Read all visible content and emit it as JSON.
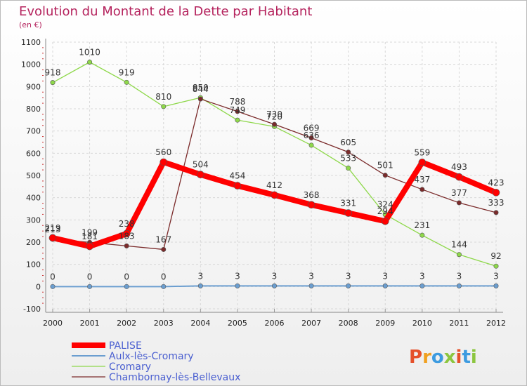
{
  "chart_data": {
    "type": "line",
    "title": "Evolution du Montant de la Dette par Habitant",
    "subtitle": "(en €)",
    "xlabel": "",
    "ylabel": "",
    "ylim": [
      -100,
      1100
    ],
    "yticks": [
      -100,
      0,
      100,
      200,
      300,
      400,
      500,
      600,
      700,
      800,
      900,
      1000,
      1100
    ],
    "x": [
      "2000",
      "2001",
      "2002",
      "2003",
      "2004",
      "2005",
      "2006",
      "2007",
      "2008",
      "2009",
      "2010",
      "2011",
      "2012"
    ],
    "grid": true,
    "legend_position": "bottom-left",
    "series": [
      {
        "name": "PALISE",
        "color": "#ff0000",
        "values": [
          219,
          181,
          238,
          560,
          504,
          454,
          412,
          368,
          331,
          294,
          559,
          493,
          423
        ],
        "labels": [
          "219",
          "181",
          "238",
          "560",
          "504",
          "454",
          "412",
          "368",
          "331",
          "294",
          "559",
          "493",
          "423"
        ]
      },
      {
        "name": "Aulx-lès-Cromary",
        "color": "#6b9ed0",
        "values": [
          0,
          0,
          0,
          0,
          3,
          3,
          3,
          3,
          3,
          3,
          3,
          3,
          3
        ],
        "labels": [
          "0",
          "0",
          "0",
          "0",
          "3",
          "3",
          "3",
          "3",
          "3",
          "3",
          "3",
          "3",
          "3"
        ]
      },
      {
        "name": "Cromary",
        "color": "#8ed84a",
        "values": [
          918,
          1010,
          919,
          810,
          850,
          749,
          720,
          636,
          533,
          324,
          231,
          144,
          92
        ],
        "labels": [
          "918",
          "1010",
          "919",
          "810",
          "850",
          "749",
          "720",
          "636",
          "533",
          "324",
          "231",
          "144",
          "92"
        ]
      },
      {
        "name": "Chambornay-lès-Bellevaux",
        "color": "#7b2b2b",
        "values": [
          213,
          199,
          183,
          167,
          844,
          788,
          730,
          669,
          605,
          501,
          437,
          377,
          333
        ],
        "labels": [
          "213",
          "199",
          "183",
          "167",
          "844",
          "788",
          "730",
          "669",
          "605",
          "501",
          "437",
          "377",
          "333"
        ]
      }
    ]
  },
  "logo": {
    "text": "Proxiti",
    "colors": [
      "#e5502a",
      "#f0a020",
      "#3d9be0",
      "#8cc63f",
      "#e5502a",
      "#3d9be0",
      "#8cc63f"
    ]
  }
}
